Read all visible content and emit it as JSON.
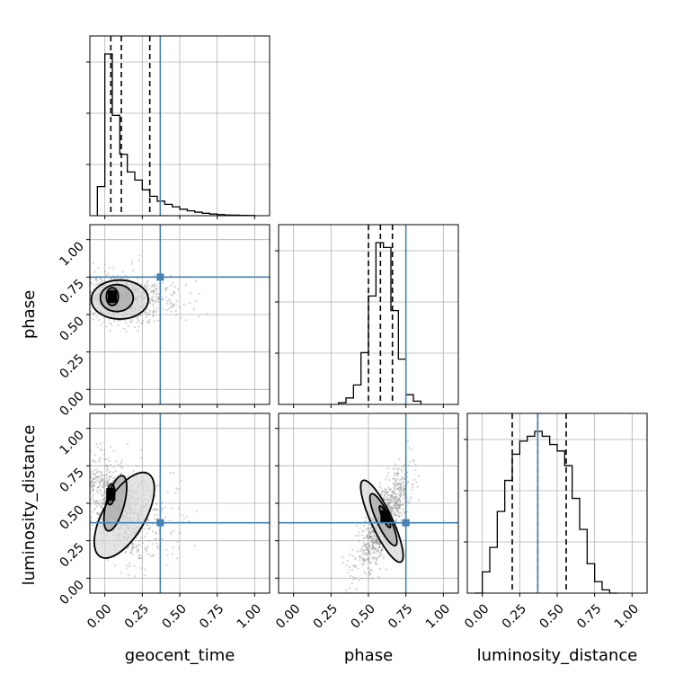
{
  "chart_data": {
    "type": "corner",
    "parameters": [
      "geocent_time",
      "phase",
      "luminosity_distance"
    ],
    "axis_range": [
      -0.1,
      1.1
    ],
    "ticks": [
      0.0,
      0.25,
      0.5,
      0.75,
      1.0
    ],
    "tick_labels": [
      "0.00",
      "0.25",
      "0.50",
      "0.75",
      "1.00"
    ],
    "grid": true,
    "colors": {
      "truth": "#4682b4",
      "histogram": "#000000",
      "points": "#808080",
      "grid": "#b0b0b0"
    },
    "truths": {
      "geocent_time": 0.37,
      "phase": 0.75,
      "luminosity_distance": 0.37
    },
    "marginals": {
      "geocent_time": {
        "bin_edges": [
          -0.05,
          0.0,
          0.05,
          0.1,
          0.15,
          0.2,
          0.25,
          0.3,
          0.35,
          0.4,
          0.45,
          0.5,
          0.55,
          0.6,
          0.65,
          0.7,
          0.75,
          0.8,
          0.85,
          0.9,
          0.95,
          1.0
        ],
        "counts": [
          0.18,
          1.0,
          0.62,
          0.38,
          0.27,
          0.22,
          0.16,
          0.12,
          0.09,
          0.07,
          0.055,
          0.04,
          0.03,
          0.022,
          0.015,
          0.01,
          0.007,
          0.004,
          0.003,
          0.002,
          0.001
        ],
        "quantiles": [
          0.04,
          0.11,
          0.3
        ]
      },
      "phase": {
        "bin_edges": [
          0.3,
          0.35,
          0.4,
          0.45,
          0.5,
          0.55,
          0.6,
          0.65,
          0.7,
          0.75,
          0.8,
          0.85
        ],
        "counts": [
          0.01,
          0.04,
          0.12,
          0.32,
          0.67,
          1.0,
          0.97,
          0.58,
          0.28,
          0.06,
          0.02
        ],
        "quantiles": [
          0.5,
          0.58,
          0.66
        ]
      },
      "luminosity_distance": {
        "bin_edges": [
          -0.05,
          0.0,
          0.05,
          0.1,
          0.15,
          0.2,
          0.25,
          0.3,
          0.35,
          0.4,
          0.45,
          0.5,
          0.55,
          0.6,
          0.65,
          0.7,
          0.75,
          0.8,
          0.85,
          0.9
        ],
        "counts": [
          0.0,
          0.13,
          0.28,
          0.5,
          0.69,
          0.85,
          0.93,
          0.96,
          0.99,
          0.96,
          0.91,
          0.87,
          0.78,
          0.58,
          0.39,
          0.18,
          0.07,
          0.02,
          0.0
        ],
        "quantiles": [
          0.2,
          0.37,
          0.56
        ]
      }
    },
    "joint": {
      "phase_vs_geocent_time": {
        "x": "geocent_time",
        "y": "phase",
        "center": [
          0.08,
          0.61
        ],
        "spread": [
          0.12,
          0.08
        ],
        "correlation": -0.1,
        "contours": [
          {
            "center": [
              0.1,
              0.6
            ],
            "radii": [
              0.19,
              0.13
            ]
          },
          {
            "center": [
              0.08,
              0.61
            ],
            "radii": [
              0.11,
              0.09
            ]
          },
          {
            "center": [
              0.05,
              0.62
            ],
            "radii": [
              0.04,
              0.06
            ]
          }
        ]
      },
      "luminosity_distance_vs_geocent_time": {
        "x": "geocent_time",
        "y": "luminosity_distance",
        "center": [
          0.06,
          0.48
        ],
        "spread": [
          0.1,
          0.16
        ],
        "correlation": -0.55,
        "contours": [
          {
            "center": [
              0.13,
              0.42
            ],
            "radii": [
              0.14,
              0.32
            ],
            "angle": 30
          },
          {
            "center": [
              0.07,
              0.5
            ],
            "radii": [
              0.06,
              0.19
            ],
            "angle": 15
          },
          {
            "center": [
              0.04,
              0.56
            ],
            "radii": [
              0.025,
              0.07
            ],
            "angle": 5
          }
        ]
      },
      "luminosity_distance_vs_phase": {
        "x": "phase",
        "y": "luminosity_distance",
        "center": [
          0.6,
          0.38
        ],
        "spread": [
          0.09,
          0.17
        ],
        "correlation": 0.8,
        "contours": [
          {
            "center": [
              0.59,
              0.38
            ],
            "radii": [
              0.07,
              0.3
            ],
            "angle": -25
          },
          {
            "center": [
              0.6,
              0.39
            ],
            "radii": [
              0.045,
              0.19
            ],
            "angle": -25
          },
          {
            "center": [
              0.61,
              0.41
            ],
            "radii": [
              0.018,
              0.08
            ],
            "angle": -25
          }
        ]
      }
    }
  }
}
